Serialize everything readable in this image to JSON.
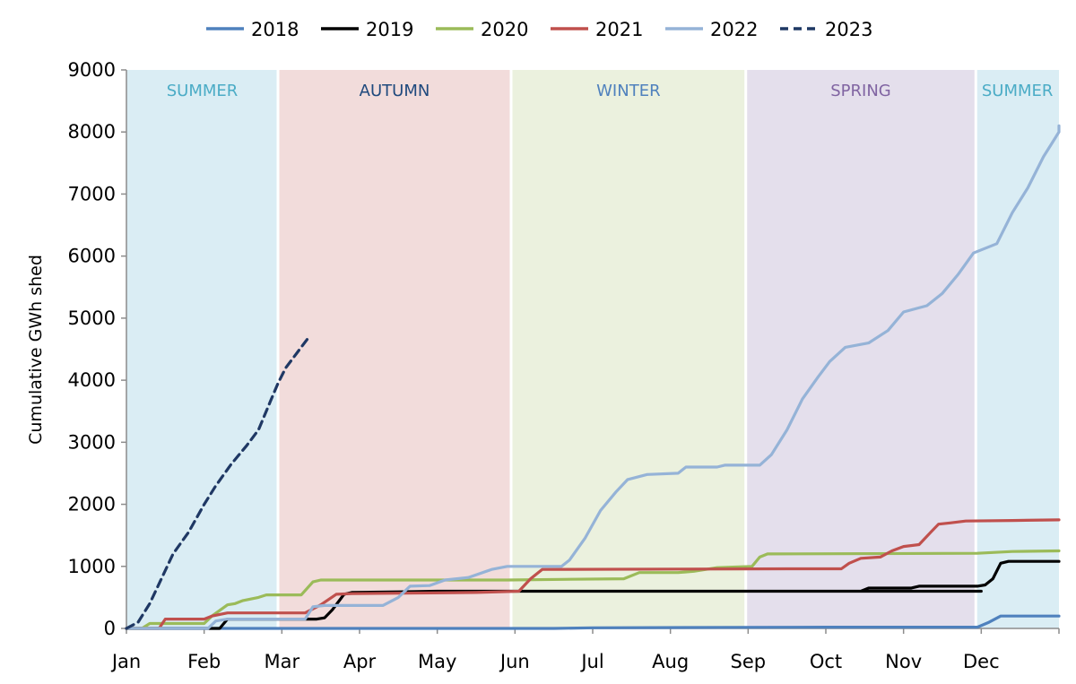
{
  "chart_data": {
    "type": "line",
    "ylabel": "Cumulative GWh shed",
    "xlabel": "",
    "title": "",
    "ylim": [
      0,
      9000
    ],
    "yticks": [
      0,
      1000,
      2000,
      3000,
      4000,
      5000,
      6000,
      7000,
      8000,
      9000
    ],
    "xlim": [
      0,
      12
    ],
    "x_unit": "months since 1 Jan",
    "months": [
      "Jan",
      "Feb",
      "Mar",
      "Apr",
      "May",
      "Jun",
      "Jul",
      "Aug",
      "Sep",
      "Oct",
      "Nov",
      "Dec"
    ],
    "legend_position": "top",
    "grid": false,
    "seasons": [
      {
        "label": "SUMMER",
        "start": 0,
        "end": 1.95,
        "fill": "#daedf4",
        "text_color": "#4bacc6"
      },
      {
        "label": "AUTUMN",
        "start": 1.95,
        "end": 4.95,
        "fill": "#f2dcdb",
        "text_color": "#1f497d"
      },
      {
        "label": "WINTER",
        "start": 4.95,
        "end": 7.97,
        "fill": "#ebf1de",
        "text_color": "#4f81bd"
      },
      {
        "label": "SPRING",
        "start": 7.97,
        "end": 10.93,
        "fill": "#e4dfec",
        "text_color": "#8064a2"
      },
      {
        "label": "SUMMER",
        "start": 10.93,
        "end": 12,
        "fill": "#daedf4",
        "text_color": "#4bacc6"
      }
    ],
    "series": [
      {
        "name": "2018",
        "color": "#4f81bd",
        "dash": false,
        "points": [
          [
            0,
            0
          ],
          [
            5.5,
            0
          ],
          [
            6,
            10
          ],
          [
            9,
            20
          ],
          [
            10.95,
            20
          ],
          [
            11.1,
            100
          ],
          [
            11.25,
            200
          ],
          [
            12,
            200
          ]
        ]
      },
      {
        "name": "2019",
        "color": "#000000",
        "dash": false,
        "points": [
          [
            0,
            0
          ],
          [
            1.05,
            0
          ],
          [
            1.2,
            0
          ],
          [
            1.3,
            150
          ],
          [
            2.45,
            150
          ],
          [
            2.55,
            170
          ],
          [
            2.65,
            300
          ],
          [
            2.8,
            550
          ],
          [
            2.9,
            580
          ],
          [
            3.5,
            590
          ],
          [
            4,
            600
          ],
          [
            11,
            600
          ],
          [
            9.45,
            600
          ],
          [
            9.55,
            650
          ],
          [
            10.1,
            650
          ],
          [
            10.2,
            680
          ],
          [
            10.95,
            680
          ],
          [
            11.05,
            700
          ],
          [
            11.15,
            800
          ],
          [
            11.25,
            1050
          ],
          [
            11.35,
            1080
          ],
          [
            12,
            1080
          ]
        ]
      },
      {
        "name": "2020",
        "color": "#9bbb59",
        "dash": false,
        "points": [
          [
            0,
            0
          ],
          [
            0.2,
            0
          ],
          [
            0.3,
            80
          ],
          [
            0.6,
            80
          ],
          [
            1.0,
            80
          ],
          [
            1.1,
            200
          ],
          [
            1.3,
            380
          ],
          [
            1.4,
            400
          ],
          [
            1.5,
            450
          ],
          [
            1.7,
            500
          ],
          [
            1.8,
            540
          ],
          [
            2.25,
            540
          ],
          [
            2.4,
            750
          ],
          [
            2.5,
            780
          ],
          [
            4.9,
            780
          ],
          [
            5.6,
            790
          ],
          [
            6.4,
            800
          ],
          [
            6.6,
            900
          ],
          [
            7.1,
            900
          ],
          [
            7.3,
            920
          ],
          [
            7.6,
            980
          ],
          [
            8.05,
            1000
          ],
          [
            8.15,
            1150
          ],
          [
            8.25,
            1200
          ],
          [
            10.95,
            1210
          ],
          [
            11.4,
            1240
          ],
          [
            12,
            1250
          ]
        ]
      },
      {
        "name": "2021",
        "color": "#c0504d",
        "dash": false,
        "points": [
          [
            0,
            0
          ],
          [
            0.42,
            0
          ],
          [
            0.5,
            150
          ],
          [
            1.0,
            150
          ],
          [
            1.1,
            200
          ],
          [
            1.3,
            250
          ],
          [
            2.3,
            250
          ],
          [
            2.5,
            380
          ],
          [
            2.7,
            550
          ],
          [
            2.9,
            560
          ],
          [
            4.5,
            580
          ],
          [
            5.05,
            600
          ],
          [
            5.2,
            800
          ],
          [
            5.35,
            950
          ],
          [
            8.5,
            960
          ],
          [
            9.2,
            960
          ],
          [
            9.3,
            1050
          ],
          [
            9.45,
            1130
          ],
          [
            9.7,
            1150
          ],
          [
            9.85,
            1250
          ],
          [
            10,
            1320
          ],
          [
            10.2,
            1350
          ],
          [
            10.35,
            1550
          ],
          [
            10.45,
            1680
          ],
          [
            10.6,
            1700
          ],
          [
            10.8,
            1730
          ],
          [
            11.4,
            1740
          ],
          [
            12,
            1750
          ]
        ]
      },
      {
        "name": "2022",
        "color": "#95b3d7",
        "dash": false,
        "points": [
          [
            0,
            0
          ],
          [
            1.05,
            0
          ],
          [
            1.15,
            120
          ],
          [
            1.3,
            150
          ],
          [
            1.6,
            150
          ],
          [
            2.3,
            150
          ],
          [
            2.4,
            350
          ],
          [
            2.55,
            370
          ],
          [
            3.3,
            370
          ],
          [
            3.5,
            500
          ],
          [
            3.65,
            680
          ],
          [
            3.9,
            690
          ],
          [
            4.1,
            780
          ],
          [
            4.4,
            820
          ],
          [
            4.7,
            950
          ],
          [
            4.9,
            1000
          ],
          [
            5.6,
            1000
          ],
          [
            5.7,
            1100
          ],
          [
            5.9,
            1450
          ],
          [
            6.1,
            1900
          ],
          [
            6.3,
            2200
          ],
          [
            6.45,
            2400
          ],
          [
            6.7,
            2480
          ],
          [
            7.1,
            2500
          ],
          [
            7.2,
            2600
          ],
          [
            7.6,
            2600
          ],
          [
            7.7,
            2630
          ],
          [
            8.15,
            2630
          ],
          [
            8.3,
            2800
          ],
          [
            8.5,
            3200
          ],
          [
            8.7,
            3700
          ],
          [
            8.9,
            4050
          ],
          [
            9.05,
            4300
          ],
          [
            9.25,
            4530
          ],
          [
            9.55,
            4600
          ],
          [
            9.8,
            4800
          ],
          [
            10.0,
            5100
          ],
          [
            10.3,
            5200
          ],
          [
            10.5,
            5400
          ],
          [
            10.7,
            5700
          ],
          [
            10.9,
            6050
          ],
          [
            11.1,
            6150
          ],
          [
            11.2,
            6200
          ],
          [
            11.4,
            6700
          ],
          [
            11.6,
            7100
          ],
          [
            11.8,
            7600
          ],
          [
            11.95,
            7900
          ],
          [
            12.1,
            8000
          ],
          [
            12.2,
            8100
          ]
        ]
      },
      {
        "name": "2023",
        "color": "#1f3864",
        "dash": true,
        "points": [
          [
            0,
            0
          ],
          [
            0.15,
            100
          ],
          [
            0.3,
            400
          ],
          [
            0.45,
            800
          ],
          [
            0.6,
            1200
          ],
          [
            0.8,
            1550
          ],
          [
            1.0,
            2000
          ],
          [
            1.15,
            2300
          ],
          [
            1.35,
            2650
          ],
          [
            1.55,
            2950
          ],
          [
            1.7,
            3200
          ],
          [
            1.85,
            3650
          ],
          [
            1.95,
            3950
          ],
          [
            2.05,
            4200
          ],
          [
            2.2,
            4450
          ],
          [
            2.35,
            4700
          ]
        ]
      }
    ]
  }
}
